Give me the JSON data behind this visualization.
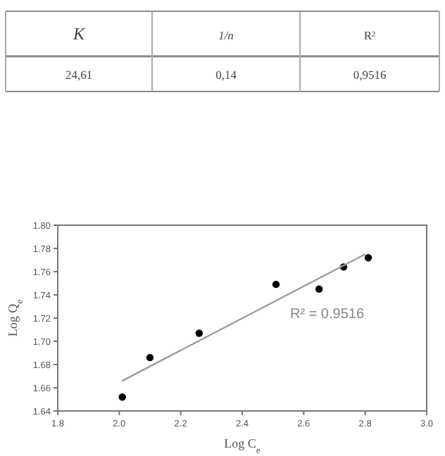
{
  "chart_data": {
    "type": "scatter",
    "xlabel": "Log C$_{e}$",
    "ylabel": "Log Q$_{e}$",
    "xlim": [
      1.8,
      3.0
    ],
    "xticks": [
      {
        "value": 1.8,
        "label": "1.8"
      },
      {
        "value": 2.0,
        "label": "2.0"
      },
      {
        "value": 2.2,
        "label": "2.2"
      },
      {
        "value": 2.4,
        "label": "2.4"
      },
      {
        "value": 2.6,
        "label": "2.6"
      },
      {
        "value": 2.8,
        "label": "2.8"
      },
      {
        "value": 3.0,
        "label": "3.0"
      }
    ],
    "ylim": [
      1.64,
      1.8
    ],
    "yticks": [
      {
        "value": 1.64,
        "label": "1.64"
      },
      {
        "value": 1.66,
        "label": "1.66"
      },
      {
        "value": 1.68,
        "label": "1.68"
      },
      {
        "value": 1.7,
        "label": "1.70"
      },
      {
        "value": 1.72,
        "label": "1.72"
      },
      {
        "value": 1.74,
        "label": "1.74"
      },
      {
        "value": 1.76,
        "label": "1.76"
      },
      {
        "value": 1.78,
        "label": "1.78"
      },
      {
        "value": 1.8,
        "label": "1.80"
      }
    ],
    "grid": false,
    "series": [
      {
        "marker": "circle",
        "color": "#000000",
        "x": [
          2.01,
          2.1,
          2.26,
          2.51,
          2.65,
          2.73,
          2.81
        ],
        "values": [
          1.652,
          1.686,
          1.707,
          1.749,
          1.745,
          1.764,
          1.772
        ]
      },
      {
        "type": "line",
        "marker": "none",
        "color": "#9a9a9a",
        "x": [
          2.01,
          2.8
        ],
        "values": [
          1.666,
          1.775
        ]
      }
    ],
    "annotations": [
      "K",
      "1/n",
      "R²",
      "24,61",
      "0,14",
      "0,9516",
      "R² = 0.9516"
    ]
  }
}
